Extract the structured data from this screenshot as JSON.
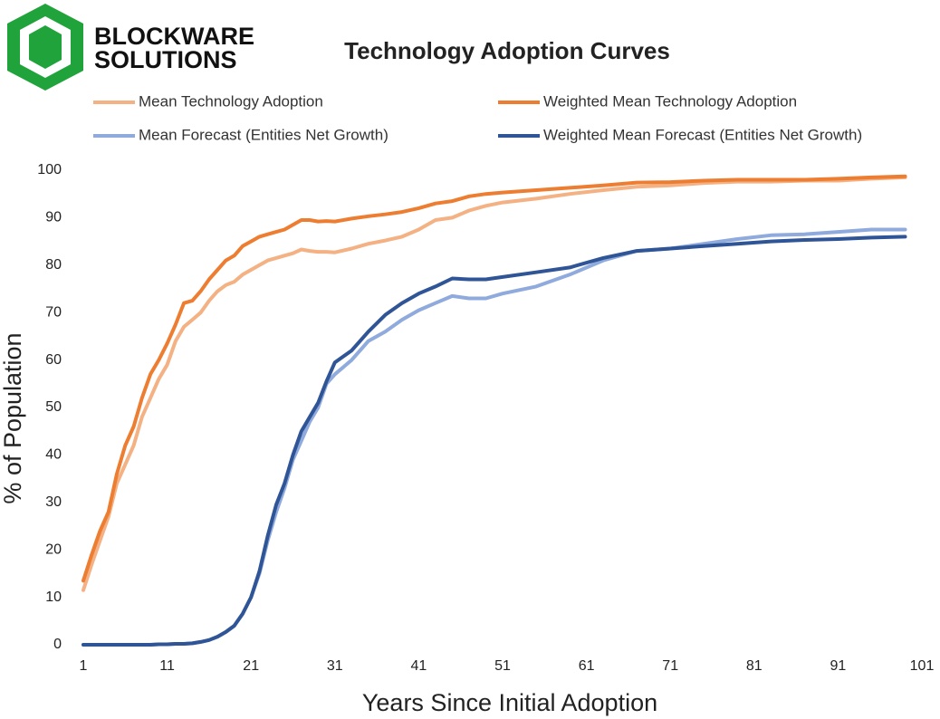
{
  "logo": {
    "line1": "BLOCKWARE",
    "line2": "SOLUTIONS"
  },
  "chart_data": {
    "type": "line",
    "title": "Technology Adoption Curves",
    "x_label": "Years Since Initial Adoption",
    "y_label": "% of Population",
    "xlim": [
      1,
      101
    ],
    "ylim": [
      0,
      100
    ],
    "xticks": [
      1,
      11,
      21,
      31,
      41,
      51,
      61,
      71,
      81,
      91,
      101
    ],
    "yticks": [
      0,
      10,
      20,
      30,
      40,
      50,
      60,
      70,
      80,
      90,
      100
    ],
    "grid": false,
    "x": [
      1,
      2,
      3,
      4,
      5,
      6,
      7,
      8,
      9,
      10,
      11,
      12,
      13,
      14,
      15,
      16,
      17,
      18,
      19,
      20,
      21,
      22,
      23,
      24,
      25,
      26,
      27,
      28,
      29,
      30,
      31,
      33,
      35,
      37,
      39,
      41,
      43,
      45,
      47,
      49,
      51,
      55,
      59,
      63,
      67,
      71,
      75,
      79,
      83,
      87,
      91,
      95,
      99
    ],
    "series": [
      {
        "name": "Mean Technology Adoption",
        "color": "#f4b183",
        "values": [
          11.5,
          17,
          22,
          27,
          34,
          38,
          42,
          48,
          52,
          56,
          59,
          64,
          67,
          68.5,
          70,
          72.5,
          74.5,
          75.8,
          76.5,
          78,
          79,
          80,
          81,
          81.5,
          82,
          82.5,
          83.3,
          83,
          82.8,
          82.8,
          82.7,
          83.5,
          84.5,
          85.2,
          86,
          87.5,
          89.5,
          90,
          91.5,
          92.5,
          93.2,
          94,
          95,
          95.8,
          96.5,
          96.8,
          97.3,
          97.6,
          97.6,
          97.8,
          97.8,
          98.2,
          98.5
        ]
      },
      {
        "name": "Weighted Mean Technology Adoption",
        "color": "#ed7d31",
        "values": [
          13.5,
          19,
          24,
          28,
          36,
          42,
          46,
          52,
          57,
          60,
          63.5,
          67.5,
          72,
          72.5,
          74.5,
          77,
          79,
          81,
          82,
          84,
          85,
          86,
          86.5,
          87,
          87.5,
          88.5,
          89.5,
          89.5,
          89.2,
          89.3,
          89.2,
          89.8,
          90.3,
          90.7,
          91.2,
          92,
          93,
          93.5,
          94.5,
          95,
          95.3,
          95.8,
          96.3,
          96.8,
          97.4,
          97.5,
          97.8,
          98,
          98,
          98,
          98.2,
          98.5,
          98.7
        ]
      },
      {
        "name": "Mean Forecast (Entities Net Growth)",
        "color": "#8faadc",
        "values": [
          0,
          0,
          0,
          0,
          0,
          0,
          0,
          0,
          0,
          0.1,
          0.1,
          0.2,
          0.2,
          0.3,
          0.6,
          1,
          1.7,
          2.7,
          4,
          6.5,
          10,
          15,
          22,
          28,
          33,
          39,
          43,
          47,
          50,
          55,
          57,
          60,
          64,
          66,
          68.5,
          70.5,
          72,
          73.5,
          73,
          73,
          74,
          75.5,
          78,
          81,
          83,
          83.5,
          84.5,
          85.5,
          86.3,
          86.5,
          87,
          87.5,
          87.5
        ]
      },
      {
        "name": "Weighted Mean Forecast (Entities Net Growth)",
        "color": "#2f5597",
        "values": [
          0,
          0,
          0,
          0,
          0,
          0,
          0,
          0,
          0,
          0.1,
          0.1,
          0.2,
          0.2,
          0.3,
          0.6,
          1,
          1.7,
          2.7,
          4,
          6.5,
          10,
          15.5,
          23,
          29.5,
          34,
          40,
          45,
          48,
          51,
          55.5,
          59.5,
          62,
          66,
          69.5,
          72,
          74,
          75.5,
          77.2,
          77,
          77,
          77.5,
          78.5,
          79.5,
          81.5,
          83,
          83.5,
          84,
          84.5,
          85,
          85.3,
          85.5,
          85.8,
          86
        ]
      }
    ]
  }
}
